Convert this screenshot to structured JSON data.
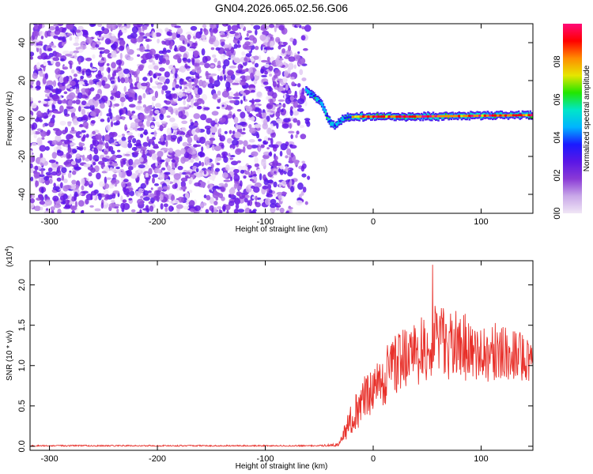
{
  "title": "GN04.2026.065.02.56.G06",
  "chart_data": [
    {
      "type": "heatmap",
      "title": "",
      "xlabel": "Height of straight line (km)",
      "ylabel": "Frequency (Hz)",
      "xlim": [
        -318,
        148
      ],
      "ylim": [
        -50,
        50
      ],
      "xticks": [
        "-300",
        "-200",
        "-100",
        "0",
        "100"
      ],
      "yticks": [
        "-40",
        "-20",
        "0",
        "20",
        "40"
      ],
      "colorbar": {
        "label": "Normalized spectral amplitude",
        "range": [
          0,
          1
        ],
        "ticks": [
          "0.0",
          "0.2",
          "0.4",
          "0.6",
          "0.8"
        ],
        "colors": [
          "#f0e6f6",
          "#c9a8e8",
          "#8a3ad6",
          "#5a16e6",
          "#1a1aff",
          "#00b4ff",
          "#00e6c8",
          "#22e600",
          "#e6e600",
          "#ff8c00",
          "#ff0000",
          "#ff0a78"
        ]
      },
      "noise_region": {
        "x_from": -318,
        "x_to": -60,
        "y_from": -50,
        "y_to": 50
      },
      "signal_track": [
        {
          "x": -62,
          "y": 15
        },
        {
          "x": -55,
          "y": 12
        },
        {
          "x": -48,
          "y": 8
        },
        {
          "x": -44,
          "y": 3
        },
        {
          "x": -40,
          "y": -2
        },
        {
          "x": -36,
          "y": -4
        },
        {
          "x": -30,
          "y": -1
        },
        {
          "x": -25,
          "y": 0.5
        },
        {
          "x": -15,
          "y": 1
        },
        {
          "x": 0,
          "y": 1
        },
        {
          "x": 20,
          "y": 1
        },
        {
          "x": 40,
          "y": 1
        },
        {
          "x": 60,
          "y": 1.2
        },
        {
          "x": 80,
          "y": 1.3
        },
        {
          "x": 100,
          "y": 1.5
        },
        {
          "x": 120,
          "y": 1.6
        },
        {
          "x": 148,
          "y": 1.8
        }
      ]
    },
    {
      "type": "line",
      "title": "",
      "xlabel": "Height of straight line (km)",
      "ylabel": "SNR (10 * v/v)",
      "yscale_label": "(x10",
      "yscale_exp": "4",
      "xlim": [
        -318,
        148
      ],
      "ylim": [
        -0.05,
        2.3
      ],
      "xticks": [
        "-300",
        "-200",
        "-100",
        "0",
        "100"
      ],
      "yticks": [
        "0.0",
        "0.5",
        "1.0",
        "1.5",
        "2.0"
      ],
      "series": [
        {
          "color": "#e8302a",
          "envelope": [
            {
              "x": -318,
              "mean": 0.005,
              "amp": 0.01
            },
            {
              "x": -50,
              "mean": 0.005,
              "amp": 0.01
            },
            {
              "x": -32,
              "mean": 0.02,
              "amp": 0.02
            },
            {
              "x": -28,
              "mean": 0.12,
              "amp": 0.08
            },
            {
              "x": -20,
              "mean": 0.35,
              "amp": 0.2
            },
            {
              "x": -10,
              "mean": 0.55,
              "amp": 0.3
            },
            {
              "x": 0,
              "mean": 0.65,
              "amp": 0.3
            },
            {
              "x": 10,
              "mean": 0.85,
              "amp": 0.35
            },
            {
              "x": 20,
              "mean": 1.05,
              "amp": 0.4
            },
            {
              "x": 40,
              "mean": 1.15,
              "amp": 0.4
            },
            {
              "x": 55,
              "mean": 1.3,
              "amp": 0.45
            },
            {
              "x": 80,
              "mean": 1.25,
              "amp": 0.45
            },
            {
              "x": 100,
              "mean": 1.2,
              "amp": 0.4
            },
            {
              "x": 120,
              "mean": 1.15,
              "amp": 0.35
            },
            {
              "x": 148,
              "mean": 1.1,
              "amp": 0.3
            }
          ],
          "peak": {
            "x": 55,
            "y": 2.25
          }
        }
      ]
    }
  ]
}
